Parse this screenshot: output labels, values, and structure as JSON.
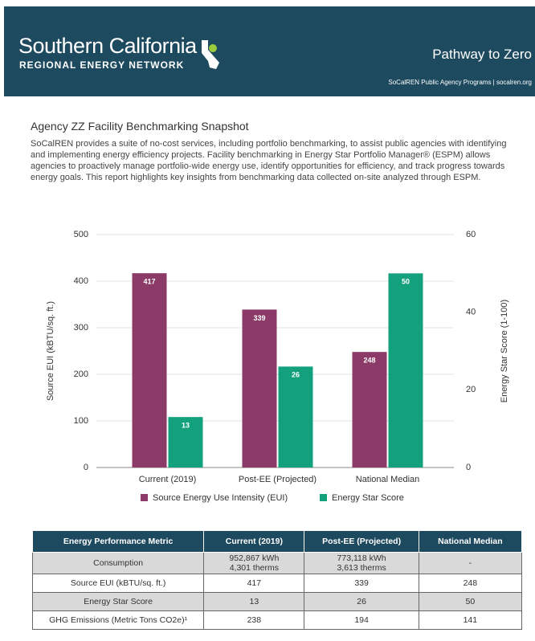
{
  "header": {
    "brand": "Southern California",
    "brand_sub": "REGIONAL ENERGY NETWORK",
    "title": "Pathway to Zero",
    "subtitle": "SoCalREN Public Agency Programs | socalren.org"
  },
  "body": {
    "title": "Agency ZZ Facility Benchmarking Snapshot",
    "paragraph": "SoCalREN provides a suite of no-cost services, including portfolio benchmarking, to assist public agencies with identifying and implementing energy efficiency projects. Facility benchmarking in Energy Star Portfolio Manager® (ESPM) allows agencies to proactively manage portfolio-wide energy use, identify opportunities for efficiency, and track progress towards energy goals. This report highlights key insights from benchmarking data collected on-site analyzed through ESPM."
  },
  "chart_data": {
    "type": "bar",
    "categories": [
      "Current (2019)",
      "Post-EE (Projected)",
      "National Median"
    ],
    "series": [
      {
        "name": "Source Energy Use Intensity (EUI)",
        "color": "#8c3a67",
        "values": [
          417,
          339,
          248
        ]
      },
      {
        "name": "Energy Star Score",
        "color": "#13a07c",
        "values": [
          13,
          26,
          50
        ],
        "axis": "y2"
      }
    ],
    "ylabel": "Source EUI (kBTU/sq. ft.)",
    "y2label": "Energy Star Score (1-100)",
    "ylim": [
      0,
      500
    ],
    "yticks": [
      0,
      100,
      200,
      300,
      400,
      500
    ],
    "y2lim": [
      0,
      60
    ],
    "y2ticks": [
      0,
      20,
      40,
      60
    ],
    "grid": true,
    "legend": "bottom"
  },
  "table": {
    "columns": [
      "Energy Performance Metric",
      "Current (2019)",
      "Post-EE (Projected)",
      "National Median"
    ],
    "rows": [
      [
        "Consumption",
        [
          "952,867 kWh",
          "4,301 therms"
        ],
        [
          "773,118 kWh",
          "3,613 therms"
        ],
        "-"
      ],
      [
        "Source EUI (kBTU/sq. ft.)",
        "417",
        "339",
        "248"
      ],
      [
        "Energy Star Score",
        "13",
        "26",
        "50"
      ],
      [
        "GHG Emissions (Metric Tons CO2e)¹",
        "238",
        "194",
        "141"
      ]
    ]
  }
}
